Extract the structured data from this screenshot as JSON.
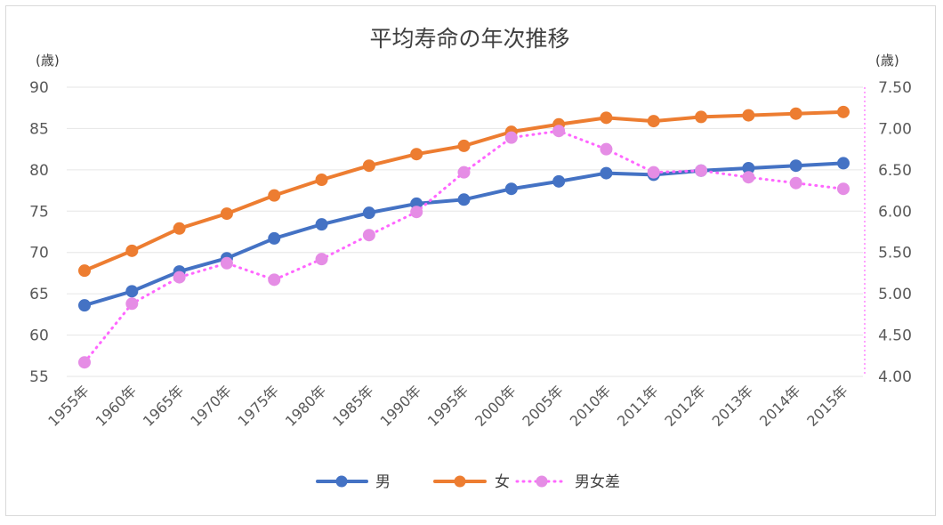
{
  "chart_data": {
    "type": "line",
    "title": "平均寿命の年次推移",
    "left_unit": "(歳)",
    "right_unit": "(歳)",
    "categories": [
      "1955年",
      "1960年",
      "1965年",
      "1970年",
      "1975年",
      "1980年",
      "1985年",
      "1990年",
      "1995年",
      "2000年",
      "2005年",
      "2010年",
      "2011年",
      "2012年",
      "2013年",
      "2014年",
      "2015年"
    ],
    "y_left": {
      "min": 55,
      "max": 90,
      "step": 5,
      "ticks": [
        "90",
        "85",
        "80",
        "75",
        "70",
        "65",
        "60",
        "55"
      ]
    },
    "y_right": {
      "min": 4.0,
      "max": 7.5,
      "step": 0.5,
      "ticks": [
        "7.50",
        "7.00",
        "6.50",
        "6.00",
        "5.50",
        "5.00",
        "4.50",
        "4.00"
      ]
    },
    "series": [
      {
        "name": "男",
        "axis": "left",
        "color": "#4472c4",
        "style": "solid",
        "values": [
          63.6,
          65.3,
          67.7,
          69.3,
          71.7,
          73.4,
          74.8,
          75.9,
          76.4,
          77.7,
          78.6,
          79.6,
          79.4,
          79.9,
          80.2,
          80.5,
          80.8
        ]
      },
      {
        "name": "女",
        "axis": "left",
        "color": "#ed7d31",
        "style": "solid",
        "values": [
          67.8,
          70.2,
          72.9,
          74.7,
          76.9,
          78.8,
          80.5,
          81.9,
          82.9,
          84.6,
          85.5,
          86.3,
          85.9,
          86.4,
          86.6,
          86.8,
          87.0
        ]
      },
      {
        "name": "男女差",
        "axis": "right",
        "color": "#ff66ff",
        "marker_color": "#e58de5",
        "style": "dotted",
        "values": [
          4.17,
          4.88,
          5.2,
          5.37,
          5.17,
          5.42,
          5.71,
          5.99,
          6.47,
          6.89,
          6.97,
          6.75,
          6.47,
          6.49,
          6.41,
          6.34,
          6.27
        ]
      }
    ],
    "legend": {
      "placement": "bottom",
      "items": [
        "男",
        "女",
        "男女差"
      ]
    },
    "grid": true
  }
}
